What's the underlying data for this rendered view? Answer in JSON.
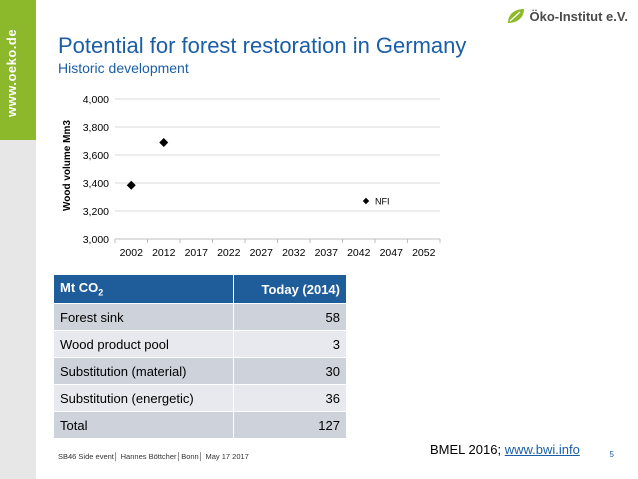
{
  "sidebar": {
    "url": "www.oeko.de"
  },
  "logo": {
    "text": "Öko-Institut e.V."
  },
  "slide": {
    "title": "Potential for forest restoration in Germany",
    "subtitle": "Historic development"
  },
  "chart_data": {
    "type": "scatter",
    "title": "",
    "xlabel": "",
    "ylabel": "Wood volume Mm3",
    "categories": [
      "2002",
      "2012",
      "2017",
      "2022",
      "2027",
      "2032",
      "2037",
      "2042",
      "2047",
      "2052"
    ],
    "yticks": [
      "3,000",
      "3,200",
      "3,400",
      "3,600",
      "3,800",
      "4,000"
    ],
    "ylim": [
      3000,
      4000
    ],
    "grid": true,
    "legend_position": "right",
    "series": [
      {
        "name": "NFI",
        "x": [
          "2002",
          "2012"
        ],
        "y": [
          3384,
          3689
        ],
        "marker": "diamond",
        "color": "#000000"
      }
    ]
  },
  "table": {
    "header": {
      "label": "Mt CO",
      "label_sub": "2",
      "value": "Today (2014)"
    },
    "rows": [
      {
        "label": "Forest sink",
        "value": "58"
      },
      {
        "label": "Wood product pool",
        "value": "3"
      },
      {
        "label": "Substitution (material)",
        "value": "30"
      },
      {
        "label": "Substitution (energetic)",
        "value": "36"
      },
      {
        "label": "Total",
        "value": "127"
      }
    ]
  },
  "footer": {
    "text": "SB46 Side event│ Hannes Böttcher│Bonn│ May 17 2017"
  },
  "source": {
    "prefix": "BMEL 2016; ",
    "link": "www.bwi.info"
  },
  "page_number": "5",
  "colors": {
    "brand_green": "#8cb92c",
    "title_blue": "#1a5ea8",
    "table_header": "#1f5c9a"
  }
}
